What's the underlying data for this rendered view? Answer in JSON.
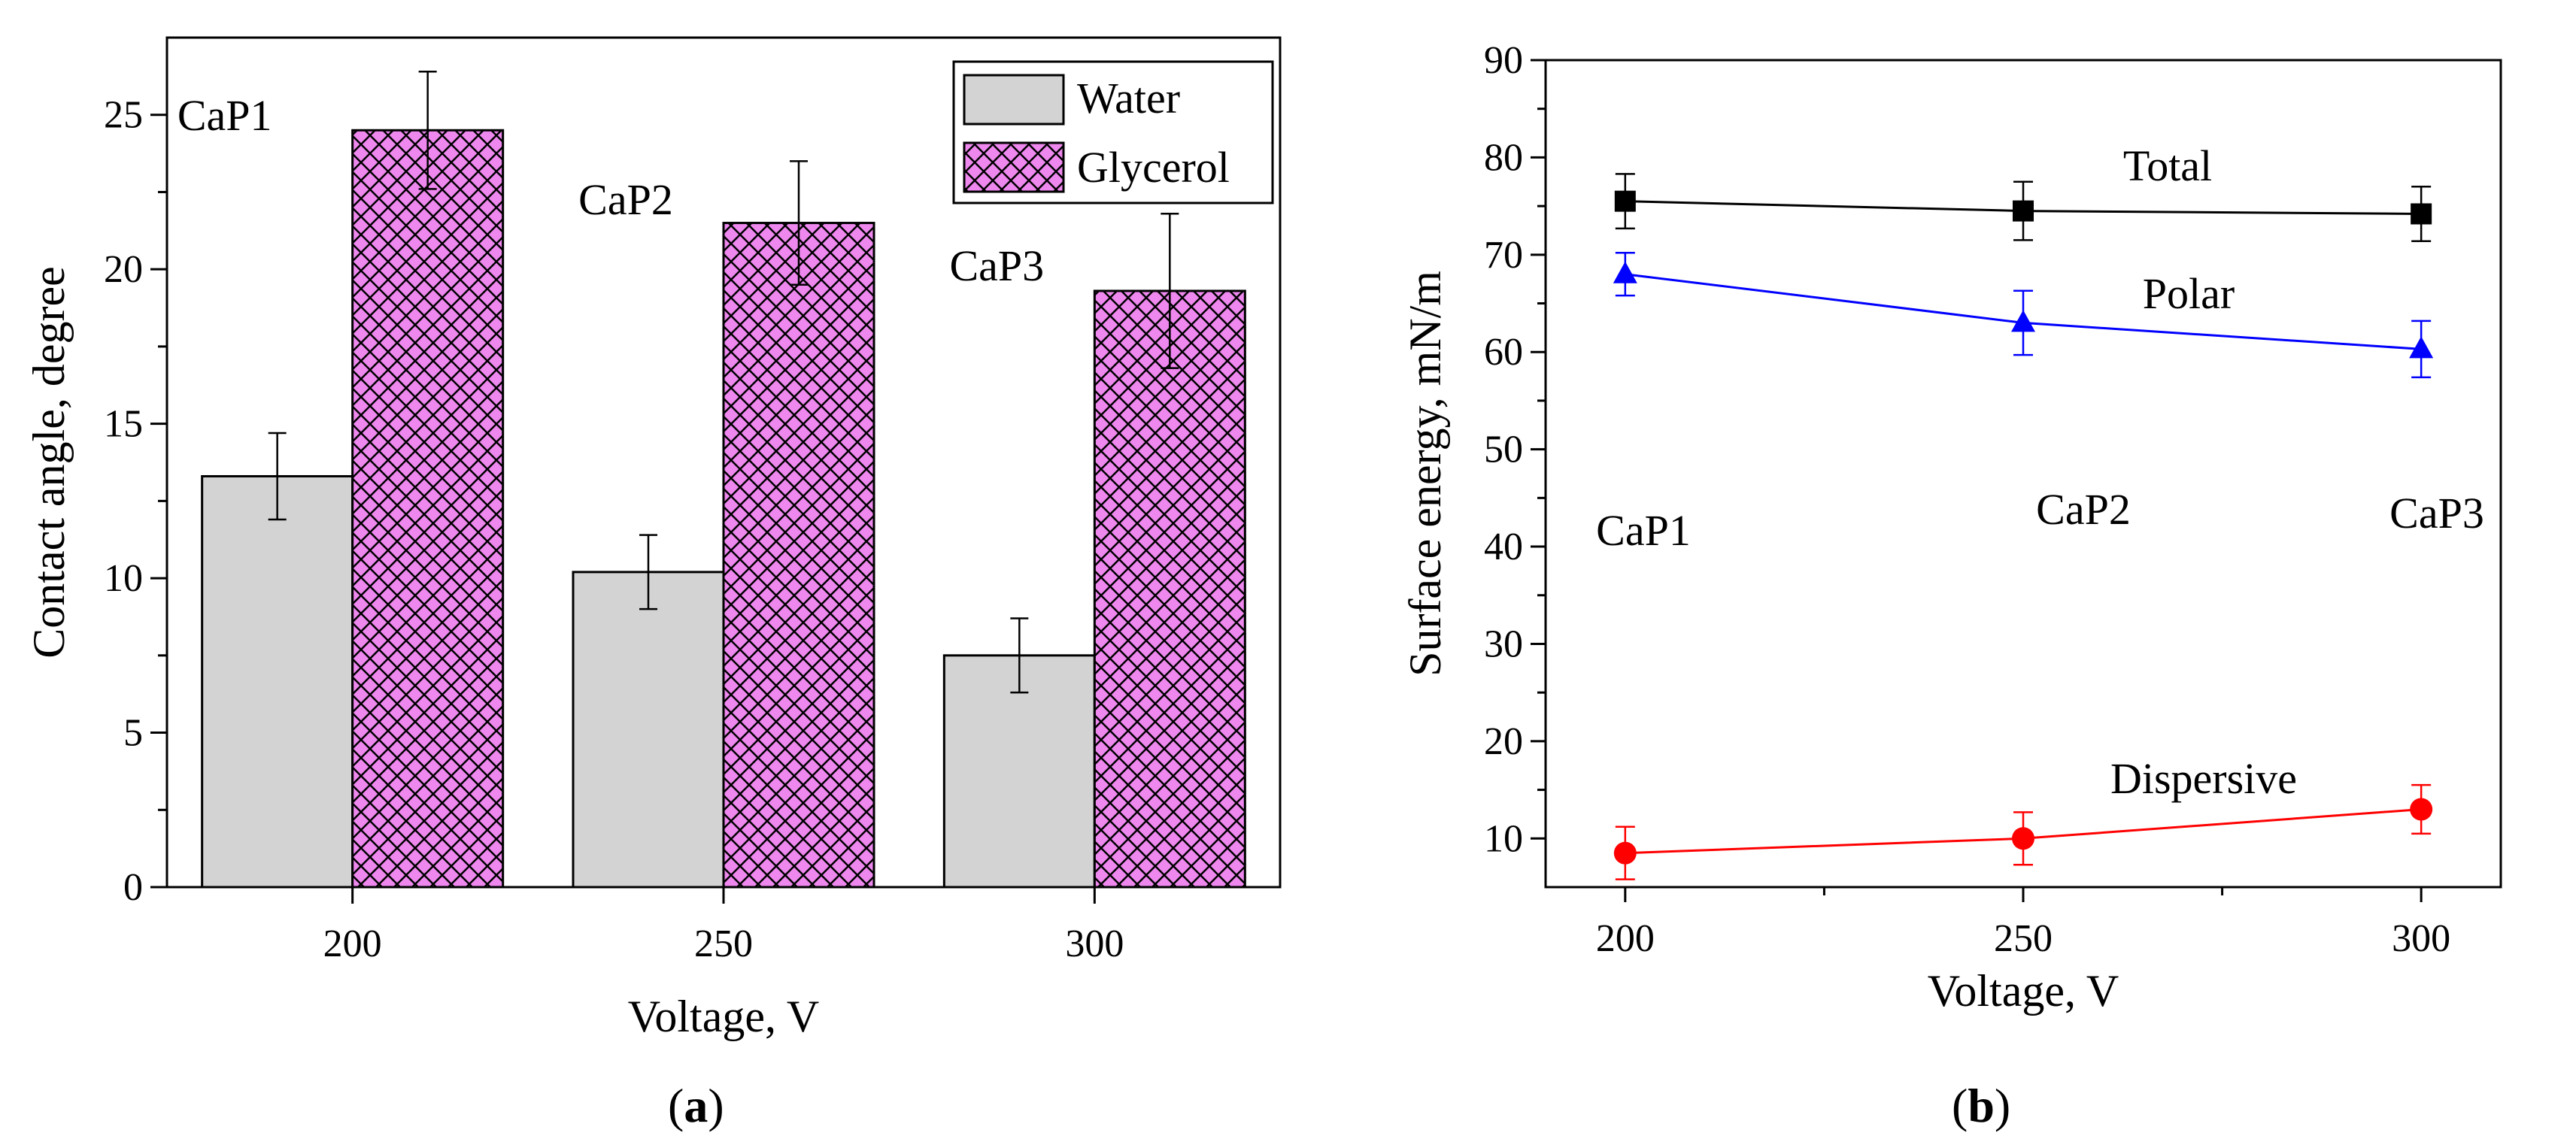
{
  "chart_data": [
    {
      "panel": "a",
      "type": "bar",
      "categories": [
        "200",
        "250",
        "300"
      ],
      "series": [
        {
          "name": "Water",
          "values": [
            13.3,
            10.2,
            7.5
          ],
          "errors": [
            1.4,
            1.2,
            1.2
          ],
          "color": "#d3d3d3",
          "pattern": "none"
        },
        {
          "name": "Glycerol",
          "values": [
            24.5,
            21.5,
            19.3
          ],
          "errors": [
            1.9,
            2.0,
            2.5
          ],
          "color": "#ee88ee",
          "pattern": "crosshatch"
        }
      ],
      "annotations": [
        "CaP1",
        "CaP2",
        "CaP3"
      ],
      "xlabel": "Voltage, V",
      "ylabel": "Contact angle, degree",
      "ylim": [
        0,
        27.5
      ],
      "yticks": [
        "0",
        "5",
        "10",
        "15",
        "20",
        "25"
      ],
      "legend": "top-right",
      "panel_label_open": "(",
      "panel_label_letter": "a",
      "panel_label_close": ")"
    },
    {
      "panel": "b",
      "type": "line",
      "x": [
        200,
        250,
        300
      ],
      "xticks": [
        "200",
        "250",
        "300"
      ],
      "series": [
        {
          "name": "Total",
          "values": [
            75.5,
            74.5,
            74.2
          ],
          "errors": [
            2.8,
            3.0,
            2.8
          ],
          "color": "#000000",
          "marker": "square"
        },
        {
          "name": "Polar",
          "values": [
            68.0,
            63.0,
            60.3
          ],
          "errors": [
            2.2,
            3.3,
            2.9
          ],
          "color": "#0000ff",
          "marker": "triangle"
        },
        {
          "name": "Dispersive",
          "values": [
            8.5,
            10.0,
            13.0
          ],
          "errors": [
            2.7,
            2.7,
            2.5
          ],
          "color": "#ff0000",
          "marker": "circle"
        }
      ],
      "annotations": [
        "CaP1",
        "CaP2",
        "CaP3"
      ],
      "xlabel": "Voltage, V",
      "ylabel": "Surface energy, mN/m",
      "xlim": [
        190,
        310
      ],
      "ylim": [
        5,
        90
      ],
      "yticks": [
        "10",
        "20",
        "30",
        "40",
        "50",
        "60",
        "70",
        "80",
        "90"
      ],
      "panel_label_open": "(",
      "panel_label_letter": "b",
      "panel_label_close": ")"
    }
  ]
}
